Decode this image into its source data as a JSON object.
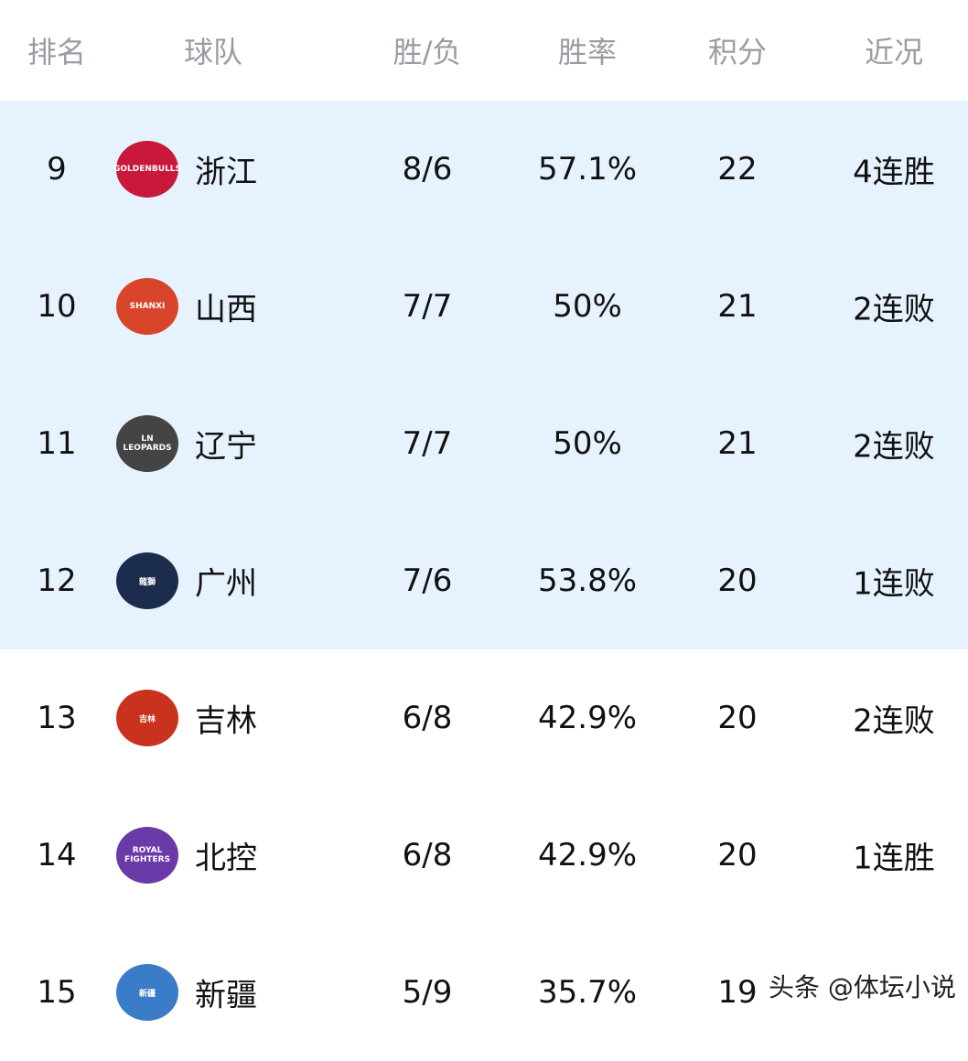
{
  "headers": {
    "rank": "排名",
    "team": "球队",
    "wl": "胜/负",
    "pct": "胜率",
    "pts": "积分",
    "recent": "近况"
  },
  "colors": {
    "highlight": "#e6f2fd",
    "header_text": "#9a9ca3"
  },
  "rows": [
    {
      "rank": "9",
      "team": "浙江",
      "wl": "8/6",
      "pct": "57.1%",
      "pts": "22",
      "recent": "4连胜",
      "logo": "GOLDENBULLS",
      "logo_color": "#c8193a",
      "highlight": true
    },
    {
      "rank": "10",
      "team": "山西",
      "wl": "7/7",
      "pct": "50%",
      "pts": "21",
      "recent": "2连败",
      "logo": "SHANXI",
      "logo_color": "#d9452b",
      "highlight": true
    },
    {
      "rank": "11",
      "team": "辽宁",
      "wl": "7/7",
      "pct": "50%",
      "pts": "21",
      "recent": "2连败",
      "logo": "LN LEOPARDS",
      "logo_color": "#444444",
      "highlight": true
    },
    {
      "rank": "12",
      "team": "广州",
      "wl": "7/6",
      "pct": "53.8%",
      "pts": "20",
      "recent": "1连败",
      "logo": "龍獅",
      "logo_color": "#1c2c4c",
      "highlight": true
    },
    {
      "rank": "13",
      "team": "吉林",
      "wl": "6/8",
      "pct": "42.9%",
      "pts": "20",
      "recent": "2连败",
      "logo": "吉林",
      "logo_color": "#c8321e",
      "highlight": false
    },
    {
      "rank": "14",
      "team": "北控",
      "wl": "6/8",
      "pct": "42.9%",
      "pts": "20",
      "recent": "1连胜",
      "logo": "ROYAL FIGHTERS",
      "logo_color": "#6a3aa8",
      "highlight": false
    },
    {
      "rank": "15",
      "team": "新疆",
      "wl": "5/9",
      "pct": "35.7%",
      "pts": "19",
      "recent": "",
      "logo": "新疆",
      "logo_color": "#3a7cc8",
      "highlight": false
    }
  ],
  "watermark": "头条 @体坛小说"
}
